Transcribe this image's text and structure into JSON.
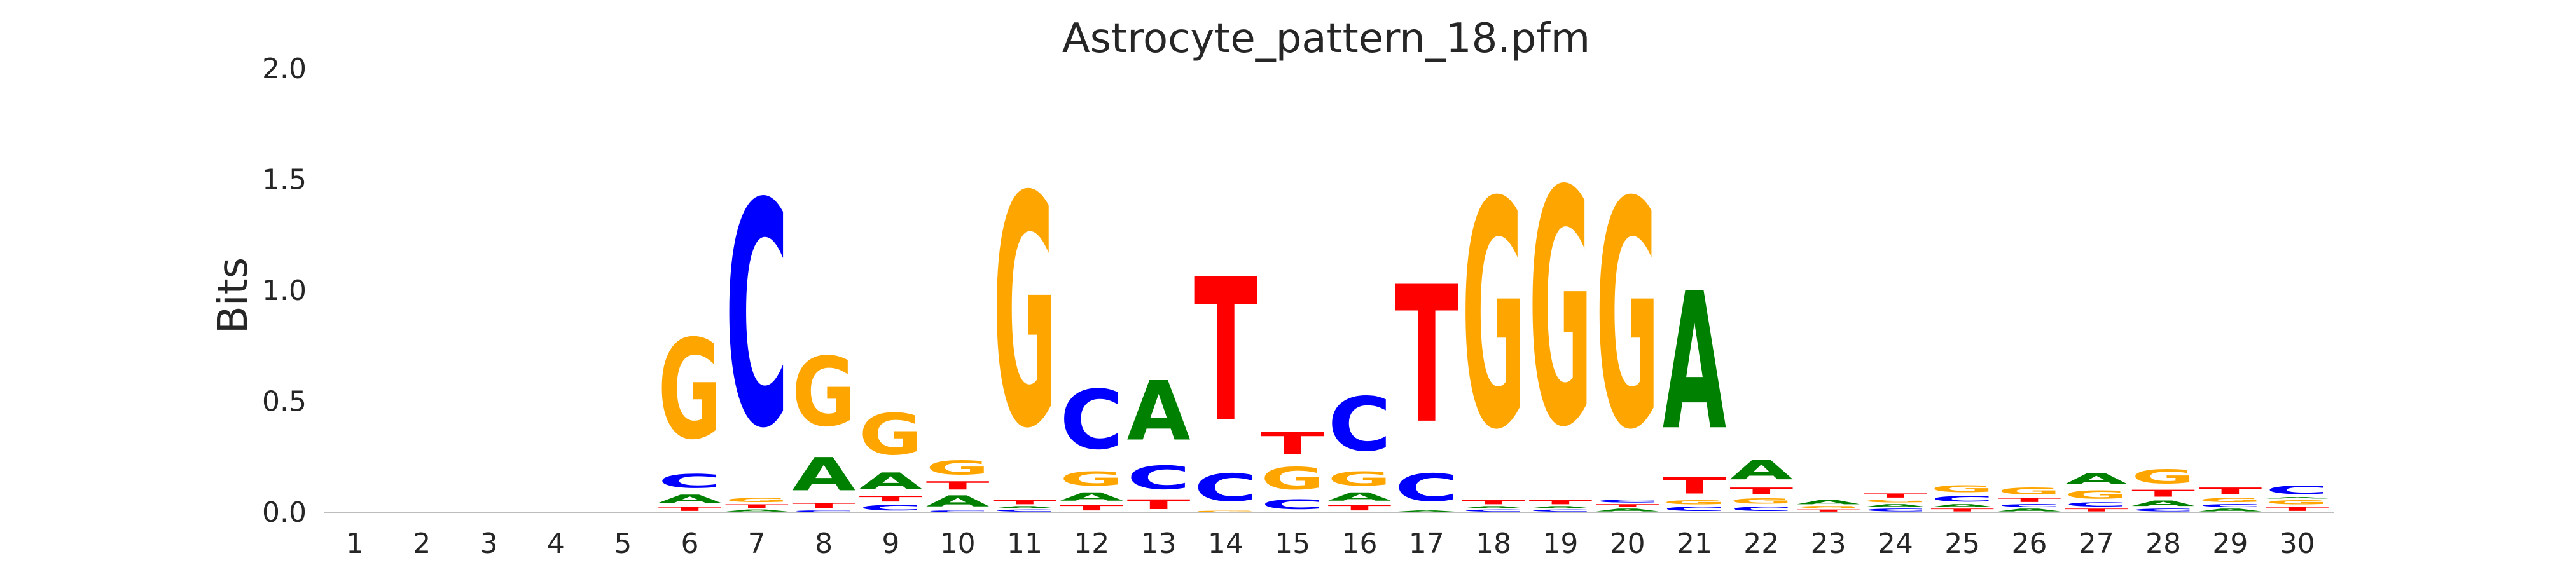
{
  "chart_data": {
    "type": "sequence-logo",
    "title": "Astrocyte_pattern_18.pfm",
    "ylabel": "Bits",
    "xlabel": "",
    "ylim": [
      0,
      2
    ],
    "yticks": [
      "0.0",
      "0.5",
      "1.0",
      "1.5",
      "2.0"
    ],
    "positions": [
      "1",
      "2",
      "3",
      "4",
      "5",
      "6",
      "7",
      "8",
      "9",
      "10",
      "11",
      "12",
      "13",
      "14",
      "15",
      "16",
      "17",
      "18",
      "19",
      "20",
      "21",
      "22",
      "23",
      "24",
      "25",
      "26",
      "27",
      "28",
      "29",
      "30"
    ],
    "colors": {
      "A": "#008000",
      "C": "#0000ff",
      "G": "#ffa500",
      "T": "#ff0000"
    },
    "stacks": [
      [],
      [],
      [],
      [],
      [],
      [
        [
          "T",
          0.03
        ],
        [
          "A",
          0.06
        ],
        [
          "C",
          0.1
        ],
        [
          "G",
          0.72
        ]
      ],
      [
        [
          "A",
          0.015
        ],
        [
          "T",
          0.025
        ],
        [
          "G",
          0.03
        ],
        [
          "C",
          1.62
        ]
      ],
      [
        [
          "C",
          0.01
        ],
        [
          "T",
          0.04
        ],
        [
          "A",
          0.24
        ],
        [
          "G",
          0.5
        ]
      ],
      [
        [
          "C",
          0.04
        ],
        [
          "T",
          0.04
        ],
        [
          "A",
          0.12
        ],
        [
          "G",
          0.3
        ]
      ],
      [
        [
          "C",
          0.01
        ],
        [
          "A",
          0.08
        ],
        [
          "T",
          0.06
        ],
        [
          "G",
          0.1
        ]
      ],
      [
        [
          "C",
          0.015
        ],
        [
          "A",
          0.015
        ],
        [
          "T",
          0.03
        ],
        [
          "G",
          1.67
        ]
      ],
      [
        [
          "T",
          0.04
        ],
        [
          "A",
          0.06
        ],
        [
          "G",
          0.1
        ],
        [
          "C",
          0.43
        ]
      ],
      [
        [
          "T",
          0.07
        ],
        [
          "C",
          0.17
        ],
        [
          "A",
          0.43
        ]
      ],
      [
        [
          "G",
          0.01
        ],
        [
          "C",
          0.2
        ],
        [
          "T",
          1.03
        ]
      ],
      [
        [
          "C",
          0.07
        ],
        [
          "G",
          0.16
        ],
        [
          "T",
          0.16
        ]
      ],
      [
        [
          "T",
          0.04
        ],
        [
          "A",
          0.06
        ],
        [
          "G",
          0.1
        ],
        [
          "C",
          0.39
        ]
      ],
      [
        [
          "A",
          0.01
        ],
        [
          "C",
          0.2
        ],
        [
          "T",
          0.99
        ]
      ],
      [
        [
          "C",
          0.015
        ],
        [
          "A",
          0.015
        ],
        [
          "T",
          0.03
        ],
        [
          "G",
          1.64
        ]
      ],
      [
        [
          "C",
          0.015
        ],
        [
          "A",
          0.015
        ],
        [
          "T",
          0.03
        ],
        [
          "G",
          1.7
        ]
      ],
      [
        [
          "A",
          0.02
        ],
        [
          "T",
          0.02
        ],
        [
          "C",
          0.02
        ],
        [
          "G",
          1.64
        ]
      ],
      [
        [
          "C",
          0.03
        ],
        [
          "G",
          0.03
        ],
        [
          "T",
          0.12
        ],
        [
          "A",
          0.99
        ]
      ],
      [
        [
          "C",
          0.03
        ],
        [
          "G",
          0.04
        ],
        [
          "T",
          0.05
        ],
        [
          "A",
          0.14
        ]
      ],
      [
        [
          "T",
          0.015
        ],
        [
          "G",
          0.015
        ],
        [
          "A",
          0.03
        ]
      ],
      [
        [
          "C",
          0.02
        ],
        [
          "A",
          0.02
        ],
        [
          "G",
          0.02
        ],
        [
          "T",
          0.03
        ]
      ],
      [
        [
          "T",
          0.02
        ],
        [
          "A",
          0.02
        ],
        [
          "C",
          0.04
        ],
        [
          "G",
          0.05
        ]
      ],
      [
        [
          "A",
          0.02
        ],
        [
          "C",
          0.02
        ],
        [
          "T",
          0.03
        ],
        [
          "G",
          0.05
        ]
      ],
      [
        [
          "T",
          0.02
        ],
        [
          "C",
          0.03
        ],
        [
          "G",
          0.06
        ],
        [
          "A",
          0.08
        ]
      ],
      [
        [
          "C",
          0.02
        ],
        [
          "A",
          0.04
        ],
        [
          "T",
          0.05
        ],
        [
          "G",
          0.1
        ]
      ],
      [
        [
          "A",
          0.02
        ],
        [
          "C",
          0.02
        ],
        [
          "G",
          0.03
        ],
        [
          "T",
          0.05
        ]
      ],
      [
        [
          "T",
          0.03
        ],
        [
          "G",
          0.03
        ],
        [
          "A",
          0.01
        ],
        [
          "C",
          0.06
        ]
      ]
    ]
  }
}
